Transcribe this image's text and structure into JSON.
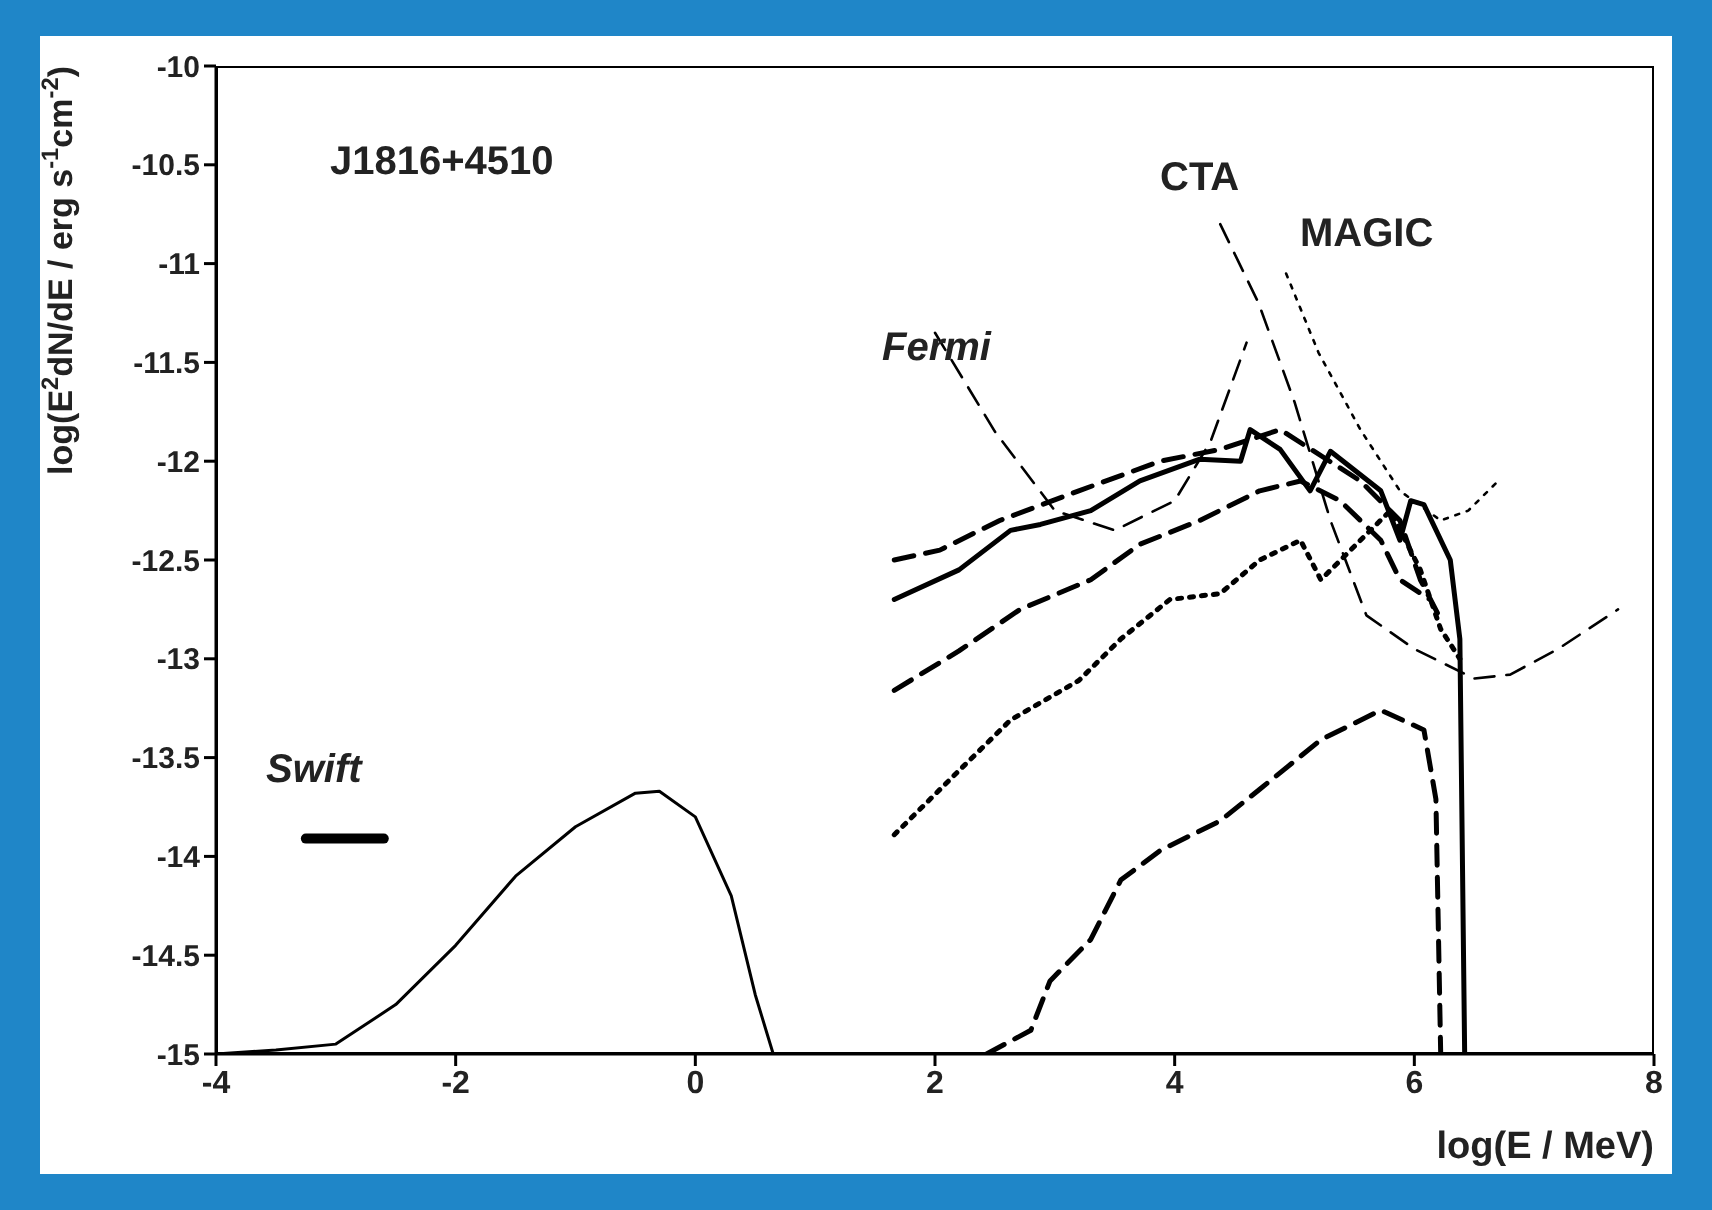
{
  "chart_data": {
    "type": "line",
    "xlabel": "log(E / MeV)",
    "ylabel": "log(E$^{2}$dN/dE / erg s$^{-1}$cm$^{-2}$)",
    "xlim": [
      -4,
      8
    ],
    "xticks": [
      -4,
      -2,
      0,
      2,
      4,
      6,
      8
    ],
    "ylim": [
      -15,
      -10
    ],
    "yticks": [
      -15,
      -14.5,
      -14,
      -13.5,
      -13,
      -12.5,
      -12,
      -11.5,
      -11,
      -10.5,
      -10
    ],
    "marker": "none",
    "annotations": [
      "J1816+4510",
      "Swift",
      "Fermi",
      "CTA",
      "MAGIC"
    ],
    "series": [
      {
        "color": "#000000",
        "line_style": "solid",
        "x": [
          -4,
          -3.5,
          -3,
          -2.5,
          -2,
          -1.5,
          -1,
          -0.5,
          -0.3,
          0,
          0.3,
          0.5,
          0.65
        ],
        "values": [
          -15,
          -14.98,
          -14.95,
          -14.75,
          -14.45,
          -14.1,
          -13.85,
          -13.68,
          -13.67,
          -13.8,
          -14.2,
          -14.7,
          -15
        ]
      },
      {
        "color": "#000000",
        "line_style": "solid",
        "x": [
          -3.25,
          -2.6
        ],
        "values": [
          -13.91,
          -13.91
        ]
      },
      {
        "color": "#000000",
        "line_style": "dashed",
        "x": [
          2.0,
          2.5,
          3.0,
          3.5,
          4.0,
          4.3,
          4.6
        ],
        "values": [
          -11.35,
          -11.85,
          -12.25,
          -12.35,
          -12.2,
          -11.9,
          -11.4
        ]
      },
      {
        "color": "#000000",
        "line_style": "dashed",
        "x": [
          4.38,
          4.7,
          5.0,
          5.3,
          5.6,
          6.0,
          6.5,
          6.8,
          7.2,
          7.7
        ],
        "values": [
          -10.8,
          -11.2,
          -11.7,
          -12.3,
          -12.78,
          -12.95,
          -13.1,
          -13.08,
          -12.95,
          -12.75
        ]
      },
      {
        "color": "#000000",
        "line_style": "dotted",
        "x": [
          4.93,
          5.2,
          5.55,
          5.88,
          6.22,
          6.45,
          6.7
        ],
        "values": [
          -11.05,
          -11.45,
          -11.84,
          -12.15,
          -12.3,
          -12.25,
          -12.1
        ]
      },
      {
        "color": "#000000",
        "line_style": "solid",
        "x": [
          1.66,
          2.2,
          2.63,
          2.88,
          3.3,
          3.71,
          4.21,
          4.55,
          4.63,
          4.88,
          5.13,
          5.3,
          5.72,
          5.88,
          5.97,
          6.08,
          6.3,
          6.38,
          6.42
        ],
        "values": [
          -12.7,
          -12.55,
          -12.35,
          -12.32,
          -12.25,
          -12.1,
          -11.99,
          -12.0,
          -11.84,
          -11.94,
          -12.15,
          -11.95,
          -12.15,
          -12.4,
          -12.2,
          -12.22,
          -12.5,
          -12.9,
          -15
        ]
      },
      {
        "color": "#000000",
        "line_style": "dashed",
        "x": [
          1.66,
          2.04,
          2.54,
          3.2,
          3.88,
          4.38,
          4.88,
          5.55,
          5.88,
          6.05,
          6.22
        ],
        "values": [
          -12.5,
          -12.45,
          -12.3,
          -12.15,
          -12.0,
          -11.94,
          -11.84,
          -12.1,
          -12.3,
          -12.6,
          -12.8
        ]
      },
      {
        "color": "#000000",
        "line_style": "dashed",
        "x": [
          1.66,
          2.2,
          2.71,
          3.3,
          3.71,
          4.21,
          4.71,
          5.05,
          5.38,
          5.72,
          5.88,
          6.13
        ],
        "values": [
          -13.16,
          -12.96,
          -12.75,
          -12.6,
          -12.42,
          -12.3,
          -12.15,
          -12.1,
          -12.2,
          -12.4,
          -12.6,
          -12.7
        ]
      },
      {
        "color": "#000000",
        "line_style": "dotted",
        "x": [
          1.66,
          2.21,
          2.63,
          3.2,
          3.55,
          3.96,
          4.38,
          4.71,
          5.05,
          5.22,
          5.55,
          5.8,
          6.05,
          6.22,
          6.38
        ],
        "values": [
          -13.89,
          -13.56,
          -13.31,
          -13.11,
          -12.9,
          -12.7,
          -12.67,
          -12.5,
          -12.4,
          -12.6,
          -12.4,
          -12.25,
          -12.55,
          -12.85,
          -13.0
        ]
      },
      {
        "color": "#000000",
        "line_style": "dashed",
        "x": [
          2.43,
          2.8,
          2.96,
          3.3,
          3.55,
          3.88,
          4.38,
          4.71,
          5.22,
          5.72,
          6.08,
          6.18,
          6.22
        ],
        "values": [
          -15,
          -14.88,
          -14.63,
          -14.42,
          -14.12,
          -13.97,
          -13.82,
          -13.66,
          -13.41,
          -13.26,
          -13.36,
          -13.71,
          -15
        ]
      }
    ]
  }
}
